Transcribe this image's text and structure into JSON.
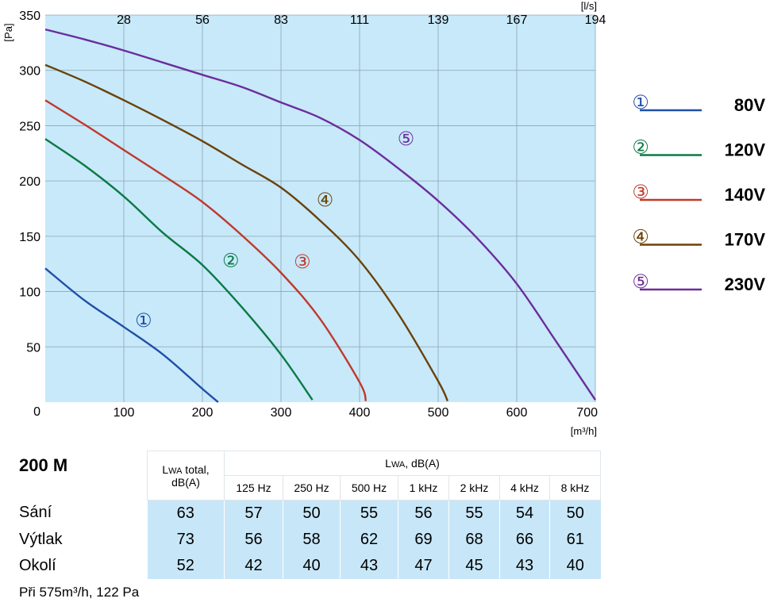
{
  "chart_data": {
    "type": "line",
    "xlabel": "[m³/h]",
    "ylabel": "[Pa]",
    "x2label": "[l/s]",
    "xlim": [
      0,
      700
    ],
    "ylim": [
      0,
      350
    ],
    "x_ticks": [
      100,
      200,
      300,
      400,
      500,
      600,
      700
    ],
    "y_ticks": [
      0,
      50,
      100,
      150,
      200,
      250,
      300,
      350
    ],
    "x2_ticks": [
      {
        "m3h": 100,
        "label": "28"
      },
      {
        "m3h": 200,
        "label": "56"
      },
      {
        "m3h": 300,
        "label": "83"
      },
      {
        "m3h": 400,
        "label": "111"
      },
      {
        "m3h": 500,
        "label": "139"
      },
      {
        "m3h": 600,
        "label": "167"
      },
      {
        "m3h": 700,
        "label": "194"
      }
    ],
    "grid": true,
    "series": [
      {
        "name": "80V",
        "marker": "①",
        "color": "#1f4fa8",
        "marker_at": [
          125,
          74
        ],
        "points": [
          [
            0,
            121
          ],
          [
            50,
            92
          ],
          [
            100,
            68
          ],
          [
            150,
            43
          ],
          [
            200,
            12
          ],
          [
            220,
            0
          ]
        ]
      },
      {
        "name": "120V",
        "marker": "②",
        "color": "#0b7a45",
        "marker_at": [
          236,
          128
        ],
        "points": [
          [
            0,
            238
          ],
          [
            50,
            214
          ],
          [
            100,
            186
          ],
          [
            150,
            153
          ],
          [
            200,
            124
          ],
          [
            250,
            86
          ],
          [
            300,
            43
          ],
          [
            340,
            2
          ]
        ]
      },
      {
        "name": "140V",
        "marker": "③",
        "color": "#c0392b",
        "marker_at": [
          327,
          127
        ],
        "points": [
          [
            0,
            273
          ],
          [
            50,
            251
          ],
          [
            100,
            228
          ],
          [
            150,
            205
          ],
          [
            200,
            181
          ],
          [
            250,
            151
          ],
          [
            300,
            117
          ],
          [
            350,
            75
          ],
          [
            400,
            18
          ],
          [
            408,
            1
          ]
        ]
      },
      {
        "name": "170V",
        "marker": "④",
        "color": "#6b4208",
        "marker_at": [
          356,
          183
        ],
        "points": [
          [
            0,
            305
          ],
          [
            50,
            290
          ],
          [
            100,
            273
          ],
          [
            150,
            255
          ],
          [
            200,
            236
          ],
          [
            250,
            215
          ],
          [
            300,
            194
          ],
          [
            350,
            164
          ],
          [
            400,
            128
          ],
          [
            450,
            79
          ],
          [
            500,
            19
          ],
          [
            512,
            1
          ]
        ]
      },
      {
        "name": "230V",
        "marker": "⑤",
        "color": "#6b2d9b",
        "marker_at": [
          459,
          238
        ],
        "points": [
          [
            0,
            337
          ],
          [
            50,
            328
          ],
          [
            100,
            318
          ],
          [
            150,
            307
          ],
          [
            200,
            296
          ],
          [
            250,
            285
          ],
          [
            300,
            271
          ],
          [
            350,
            257
          ],
          [
            400,
            237
          ],
          [
            450,
            211
          ],
          [
            500,
            182
          ],
          [
            550,
            148
          ],
          [
            600,
            107
          ],
          [
            650,
            55
          ],
          [
            700,
            2
          ]
        ]
      }
    ]
  },
  "table": {
    "model": "200 M",
    "total_header": [
      "L",
      "WA",
      " total,",
      "dB(A)"
    ],
    "band_header": [
      "L",
      "WA",
      ", dB(A)"
    ],
    "bands": [
      "125 Hz",
      "250 Hz",
      "500 Hz",
      "1 kHz",
      "2 kHz",
      "4 kHz",
      "8 kHz"
    ],
    "rows": [
      {
        "label": "Sání",
        "total": "63",
        "values": [
          "57",
          "50",
          "55",
          "56",
          "55",
          "54",
          "50"
        ]
      },
      {
        "label": "Výtlak",
        "total": "73",
        "values": [
          "56",
          "58",
          "62",
          "69",
          "68",
          "66",
          "61"
        ]
      },
      {
        "label": "Okolí",
        "total": "52",
        "values": [
          "42",
          "40",
          "43",
          "47",
          "45",
          "43",
          "40"
        ]
      }
    ],
    "footnote": "Při 575m³/h, 122 Pa"
  }
}
